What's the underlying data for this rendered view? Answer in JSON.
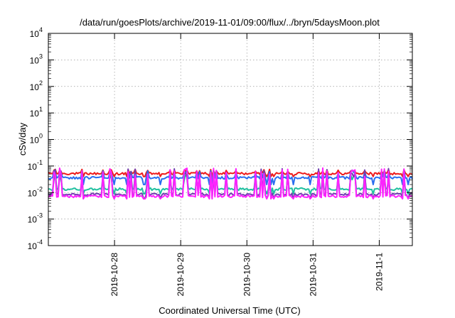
{
  "chart_data": {
    "type": "line",
    "title": "/data/run/goesPlots/archive/2019-11-01/09:00/flux/../bryn/5daysMoon.plot",
    "xlabel": "Coordinated Universal Time (UTC)",
    "ylabel": "cSv/day",
    "yscale": "log",
    "ylim": [
      0.0001,
      10000
    ],
    "xlim": [
      "2019-10-27T00:00",
      "2019-11-01T12:00"
    ],
    "grid": true,
    "x_ticks": [
      "2019-10-28",
      "2019-10-29",
      "2019-10-30",
      "2019-10-31",
      "2019-11-1"
    ],
    "y_ticks": [
      {
        "base": "10",
        "exp": "-4"
      },
      {
        "base": "10",
        "exp": "-3"
      },
      {
        "base": "10",
        "exp": "-2"
      },
      {
        "base": "10",
        "exp": "-1"
      },
      {
        "base": "10",
        "exp": "0"
      },
      {
        "base": "10",
        "exp": "1"
      },
      {
        "base": "10",
        "exp": "2"
      },
      {
        "base": "10",
        "exp": "3"
      },
      {
        "base": "10",
        "exp": "4"
      }
    ],
    "series": [
      {
        "color": "#ee1c1c",
        "baseline": 0.052,
        "spike": 0.075,
        "dip": 0.04
      },
      {
        "color": "#2a6ef0",
        "baseline": 0.036,
        "spike": 0.07,
        "dip": 0.02
      },
      {
        "color": "#20c0a0",
        "baseline": 0.0135,
        "spike": 0.05,
        "dip": 0.009
      },
      {
        "color": "#7040b0",
        "baseline": 0.0085,
        "spike": 0.08,
        "dip": 0.006
      },
      {
        "color": "#ff22ff",
        "baseline": 0.0072,
        "spike": 0.085,
        "dip": 0.0058
      }
    ]
  }
}
